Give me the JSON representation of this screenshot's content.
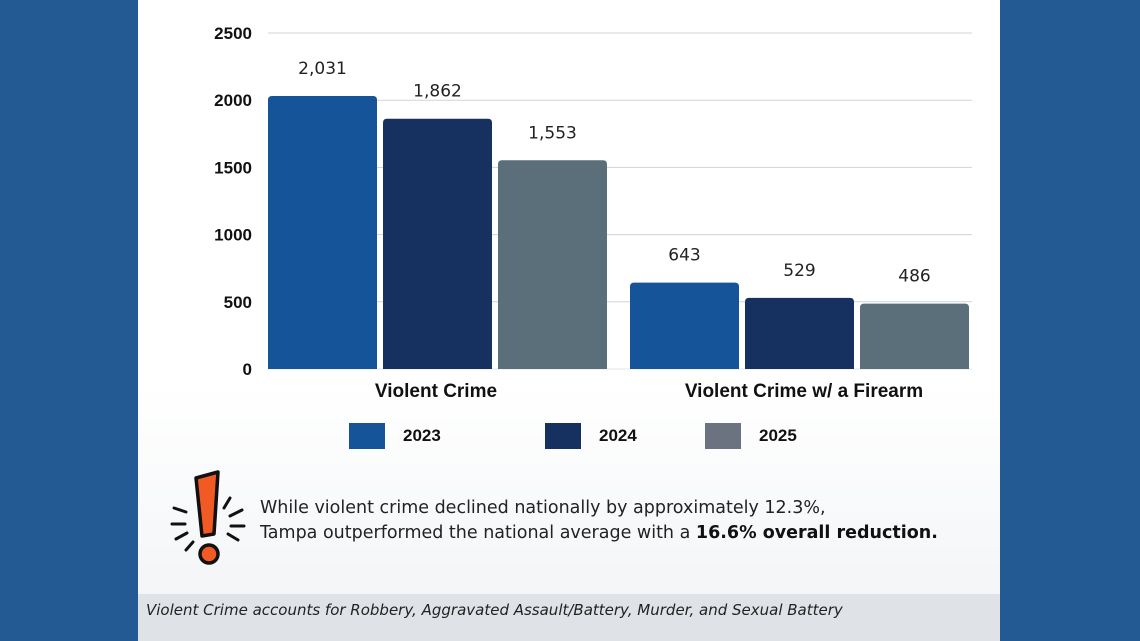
{
  "chart_data": {
    "type": "bar",
    "categories": [
      "Violent Crime",
      "Violent Crime w/ a Firearm"
    ],
    "series": [
      {
        "name": "2023",
        "values": [
          2031,
          643
        ],
        "labels": [
          "2,031",
          "643"
        ],
        "color": "#155499"
      },
      {
        "name": "2024",
        "values": [
          1862,
          529
        ],
        "labels": [
          "1,862",
          "529"
        ],
        "color": "#16315f"
      },
      {
        "name": "2025",
        "values": [
          1553,
          486
        ],
        "labels": [
          "1,553",
          "486"
        ],
        "color": "#5b6f7b"
      }
    ],
    "yticks": [
      "2500",
      "2000",
      "1500",
      "1000",
      "500",
      "0"
    ],
    "ylim": [
      0,
      2500
    ],
    "grid": true,
    "legend_position": "bottom",
    "legend_swatch_colors": [
      "#155499",
      "#16315f",
      "#6b7280"
    ]
  },
  "callout": {
    "line1": "While violent crime declined nationally by approximately 12.3%,",
    "line2_prefix": "Tampa outperformed the national average with a ",
    "line2_bold": "16.6% overall reduction.",
    "icon": "exclamation-burst-icon",
    "icon_color": "#f15a22"
  },
  "footnote": "Violent Crime accounts for Robbery, Aggravated Assault/Battery, Murder, and Sexual Battery",
  "colors": {
    "frame": "#245a94",
    "footnote_bg": "#dfe2e7"
  }
}
